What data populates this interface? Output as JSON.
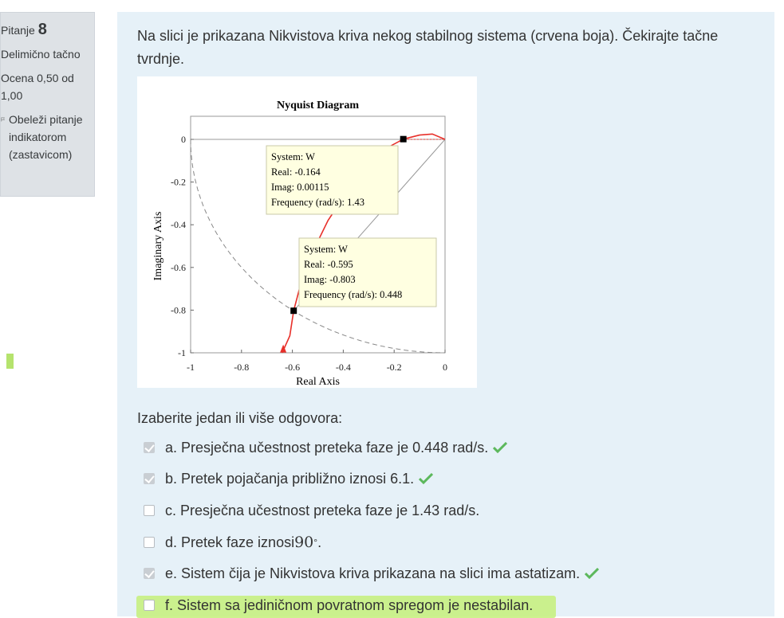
{
  "sidebar": {
    "question_label": "Pitanje",
    "question_number": "8",
    "state": "Delimično tačno",
    "grade": "Ocena 0,50 od 1,00",
    "flag_label": "Obeleži pitanje indikatorom (zastavicom)"
  },
  "question": {
    "text": "Na slici je prikazana Nikvistova kriva nekog stabilnog sistema (crvena boja). Čekirajte tačne tvrdnje.",
    "answers_title": "Izaberite jedan ili više odgovora:",
    "options": [
      {
        "label": "a. Presječna učestnost preteka faze je 0.448 rad/s.",
        "checked": true,
        "correct": true
      },
      {
        "label": "b. Pretek pojačanja približno iznosi 6.1.",
        "checked": true,
        "correct": true
      },
      {
        "label": "c. Presječna učestnost preteka faze je 1.43 rad/s.",
        "checked": false,
        "correct": false
      },
      {
        "label_prefix": "d. Pretek faze iznosi ",
        "label_value": "90",
        "label_suffix": ".",
        "checked": false,
        "correct": false
      },
      {
        "label": "e. Sistem čija je Nikvistova kriva prikazana na slici ima astatizam.",
        "checked": true,
        "correct": true
      },
      {
        "label": "f. Sistem sa jediničnom povratnom spregom je nestabilan.",
        "checked": false,
        "correct": false
      }
    ]
  },
  "chart_data": {
    "type": "line",
    "title": "Nyquist Diagram",
    "xlabel": "Real Axis",
    "ylabel": "Imaginary Axis",
    "xlim": [
      -1,
      0
    ],
    "ylim": [
      -1,
      0
    ],
    "xticks": [
      "-1",
      "-0.8",
      "-0.6",
      "-0.4",
      "-0.2",
      "0"
    ],
    "yticks": [
      "0",
      "-0.2",
      "-0.4",
      "-0.6",
      "-0.8",
      "-1"
    ],
    "xtick_values": [
      -1,
      -0.8,
      -0.6,
      -0.4,
      -0.2,
      0
    ],
    "ytick_values": [
      0,
      -0.2,
      -0.4,
      -0.6,
      -0.8,
      -1
    ],
    "series": [
      {
        "color": "#e8302a",
        "x": [
          -0.64,
          -0.61,
          -0.595,
          -0.55,
          -0.46,
          -0.36,
          -0.26,
          -0.164,
          -0.1,
          -0.05,
          0
        ],
        "y": [
          -1,
          -0.92,
          -0.803,
          -0.6,
          -0.38,
          -0.2,
          -0.06,
          0.00115,
          0.02,
          0.025,
          0
        ]
      }
    ],
    "unit_circle_color": "#888888",
    "datatips": [
      {
        "real": -0.164,
        "imag": 0.00115,
        "lines": [
          "System: W",
          "Real: -0.164",
          "Imag: 0.00115",
          "Frequency (rad/s): 1.43"
        ]
      },
      {
        "real": -0.595,
        "imag": -0.803,
        "lines": [
          "System: W",
          "Real: -0.595",
          "Imag: -0.803",
          "Frequency (rad/s): 0.448"
        ]
      }
    ],
    "colors": {
      "curve": "#e8302a",
      "tip_bg": "#ffffe1",
      "correct": "#5cb85c"
    }
  }
}
